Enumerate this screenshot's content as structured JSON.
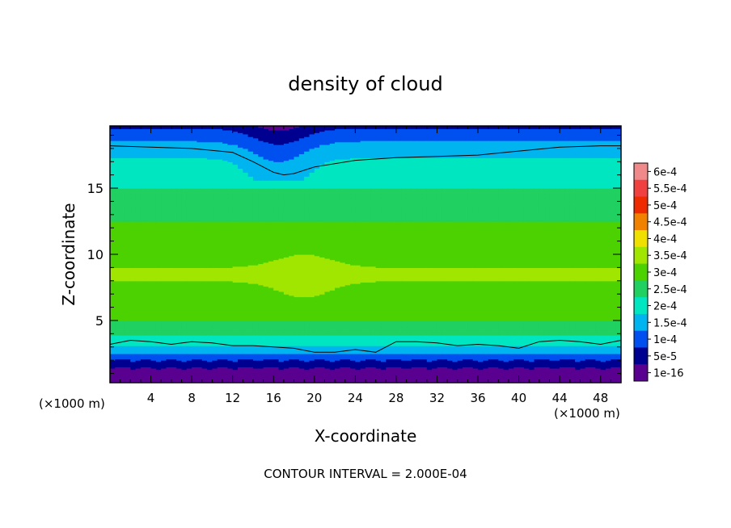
{
  "chart_data": {
    "type": "heatmap",
    "title": "density of cloud",
    "xlabel": "X-coordinate",
    "ylabel": "Z-coordinate",
    "x_unit_left": "(×1000 m)",
    "x_unit_right": "(×1000 m)",
    "xlim": [
      0,
      50
    ],
    "ylim": [
      0.3,
      19.7
    ],
    "x_ticks": [
      "4",
      "8",
      "12",
      "16",
      "20",
      "24",
      "28",
      "32",
      "36",
      "40",
      "44",
      "48"
    ],
    "x_tick_values": [
      4,
      8,
      12,
      16,
      20,
      24,
      28,
      32,
      36,
      40,
      44,
      48
    ],
    "y_ticks": [
      "5",
      "10",
      "15"
    ],
    "y_tick_values": [
      5,
      10,
      15
    ],
    "footer": "CONTOUR INTERVAL = 2.000E-04",
    "colorbar": {
      "labels": [
        "6e-4",
        "5.5e-4",
        "5e-4",
        "4.5e-4",
        "4e-4",
        "3.5e-4",
        "3e-4",
        "2.5e-4",
        "2e-4",
        "1.5e-4",
        "1e-4",
        "5e-5",
        "1e-16"
      ],
      "values": [
        0.0006,
        0.00055,
        0.0005,
        0.00045,
        0.0004,
        0.00035,
        0.0003,
        0.00025,
        0.0002,
        0.00015,
        0.0001,
        5e-05,
        1e-16
      ],
      "colors": [
        "#f08a8a",
        "#f04040",
        "#ee2a00",
        "#f08200",
        "#f0e000",
        "#a0e600",
        "#4cd200",
        "#20d060",
        "#00e6c0",
        "#00b4f0",
        "#0050f0",
        "#000090",
        "#5a0090"
      ]
    },
    "contour_lines": [
      {
        "level": 0.0002,
        "x": [
          0,
          4,
          8,
          12,
          14,
          16,
          17,
          18,
          20,
          24,
          28,
          32,
          36,
          40,
          44,
          48,
          50
        ],
        "z": [
          18.2,
          18.1,
          18.0,
          17.7,
          17.0,
          16.2,
          16.0,
          16.1,
          16.6,
          17.1,
          17.3,
          17.4,
          17.5,
          17.8,
          18.1,
          18.2,
          18.2
        ]
      },
      {
        "level": 0.0002,
        "x": [
          0,
          2,
          4,
          6,
          8,
          10,
          12,
          14,
          16,
          18,
          20,
          22,
          24,
          26,
          28,
          30,
          32,
          34,
          36,
          38,
          40,
          42,
          44,
          46,
          48,
          50
        ],
        "z": [
          3.2,
          3.5,
          3.4,
          3.2,
          3.4,
          3.3,
          3.1,
          3.1,
          3.0,
          2.9,
          2.6,
          2.6,
          2.8,
          2.6,
          3.4,
          3.4,
          3.3,
          3.1,
          3.2,
          3.1,
          2.9,
          3.4,
          3.5,
          3.4,
          3.2,
          3.5
        ]
      }
    ],
    "field_profile": {
      "z": [
        0.3,
        0.9,
        1.4,
        2.0,
        2.6,
        3.0,
        3.6,
        4.2,
        5.0,
        6.0,
        7.5,
        8.5,
        9.5,
        11.0,
        12.5,
        14.0,
        15.0,
        16.0,
        17.0,
        18.0,
        19.0,
        19.7
      ],
      "density": [
        0,
        1e-05,
        6e-05,
        0.00011,
        0.00016,
        0.000195,
        0.00023,
        0.00027,
        0.0003,
        0.00032,
        0.00034,
        0.00036,
        0.00034,
        0.00031,
        0.0003,
        0.00027,
        0.00025,
        0.00023,
        0.00021,
        0.000175,
        0.00013,
        9e-05
      ]
    }
  }
}
